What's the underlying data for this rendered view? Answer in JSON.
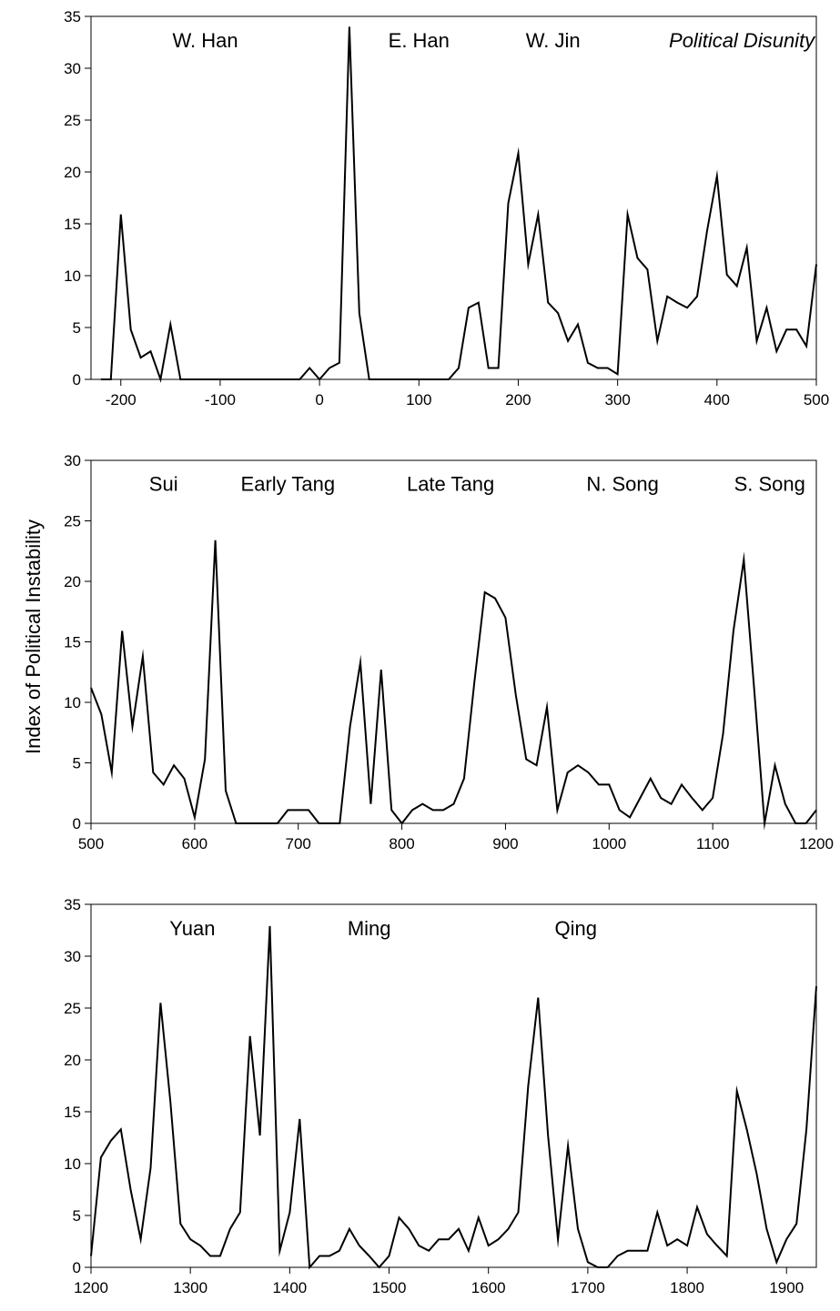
{
  "ylabel": "Index of Political Instability",
  "chart_data": [
    {
      "type": "line",
      "title": "",
      "xlabel": "",
      "ylabel": "Index of Political Instability",
      "xlim": [
        -230,
        500
      ],
      "ylim": [
        0,
        35
      ],
      "xticks": [
        -200,
        -100,
        0,
        100,
        200,
        300,
        400,
        500
      ],
      "xtick_labels": [
        "-200",
        "-100",
        "0",
        "100",
        "200",
        "300",
        "400",
        "500"
      ],
      "yticks": [
        0,
        5,
        10,
        15,
        20,
        25,
        30,
        35
      ],
      "ytick_labels": [
        "0",
        "5",
        "10",
        "15",
        "20",
        "25",
        "30",
        "35"
      ],
      "grid": false,
      "annotations": [
        {
          "text": "W. Han",
          "x": -115,
          "y": 32,
          "italic": false
        },
        {
          "text": "E. Han",
          "x": 100,
          "y": 32,
          "italic": false
        },
        {
          "text": "W. Jin",
          "x": 235,
          "y": 32,
          "italic": false
        },
        {
          "text": "Political Disunity",
          "x": 425,
          "y": 32,
          "italic": true
        }
      ],
      "x": [
        -220,
        -210,
        -200,
        -190,
        -180,
        -170,
        -160,
        -150,
        -140,
        -130,
        -120,
        -110,
        -100,
        -90,
        -80,
        -70,
        -60,
        -50,
        -40,
        -30,
        -20,
        -10,
        0,
        10,
        20,
        30,
        40,
        50,
        60,
        70,
        80,
        90,
        100,
        110,
        120,
        130,
        140,
        150,
        160,
        170,
        180,
        190,
        200,
        210,
        220,
        230,
        240,
        250,
        260,
        270,
        280,
        290,
        300,
        310,
        320,
        330,
        340,
        350,
        360,
        370,
        380,
        390,
        400,
        410,
        420,
        430,
        440,
        450,
        460,
        470,
        480,
        490,
        500
      ],
      "values": [
        0,
        0,
        15.9,
        4.8,
        2.1,
        2.7,
        0,
        5.3,
        0,
        0,
        0,
        0,
        0,
        0,
        0,
        0,
        0,
        0,
        0,
        0,
        0,
        1.1,
        0,
        1.1,
        1.6,
        34.0,
        6.4,
        0,
        0,
        0,
        0,
        0,
        0,
        0,
        0,
        0,
        1.1,
        6.9,
        7.4,
        1.1,
        1.1,
        17.0,
        21.8,
        11.1,
        15.9,
        7.4,
        6.4,
        3.7,
        5.3,
        1.6,
        1.1,
        1.1,
        0.5,
        15.9,
        11.7,
        10.6,
        3.7,
        8.0,
        7.4,
        6.9,
        8.0,
        14.3,
        19.6,
        10.1,
        9.0,
        12.7,
        3.7,
        6.9,
        2.7,
        4.8,
        4.8,
        3.2,
        11.1
      ]
    },
    {
      "type": "line",
      "title": "",
      "xlabel": "",
      "ylabel": "Index of Political Instability",
      "xlim": [
        500,
        1200
      ],
      "ylim": [
        0,
        30
      ],
      "xticks": [
        500,
        600,
        700,
        800,
        900,
        1000,
        1100,
        1200
      ],
      "xtick_labels": [
        "500",
        "600",
        "700",
        "800",
        "900",
        "1000",
        "1100",
        "1200"
      ],
      "yticks": [
        0,
        5,
        10,
        15,
        20,
        25,
        30
      ],
      "ytick_labels": [
        "0",
        "5",
        "10",
        "15",
        "20",
        "25",
        "30"
      ],
      "grid": false,
      "annotations": [
        {
          "text": "Sui",
          "x": 570,
          "y": 27.5,
          "italic": false
        },
        {
          "text": "Early Tang",
          "x": 690,
          "y": 27.5,
          "italic": false
        },
        {
          "text": "Late Tang",
          "x": 847,
          "y": 27.5,
          "italic": false
        },
        {
          "text": "N. Song",
          "x": 1013,
          "y": 27.5,
          "italic": false
        },
        {
          "text": "S. Song",
          "x": 1155,
          "y": 27.5,
          "italic": false
        }
      ],
      "x": [
        500,
        510,
        520,
        530,
        540,
        550,
        560,
        570,
        580,
        590,
        600,
        610,
        620,
        630,
        640,
        650,
        660,
        670,
        680,
        690,
        700,
        710,
        720,
        730,
        740,
        750,
        760,
        770,
        780,
        790,
        800,
        810,
        820,
        830,
        840,
        850,
        860,
        870,
        880,
        890,
        900,
        910,
        920,
        930,
        940,
        950,
        960,
        970,
        980,
        990,
        1000,
        1010,
        1020,
        1030,
        1040,
        1050,
        1060,
        1070,
        1080,
        1090,
        1100,
        1110,
        1120,
        1130,
        1140,
        1150,
        1160,
        1170,
        1180,
        1190,
        1200
      ],
      "values": [
        11.2,
        9.0,
        4.2,
        15.9,
        8.0,
        13.8,
        4.2,
        3.2,
        4.8,
        3.7,
        0.5,
        5.3,
        23.4,
        2.7,
        0,
        0,
        0,
        0,
        0,
        1.1,
        1.1,
        1.1,
        0,
        0,
        0,
        8.0,
        13.3,
        1.6,
        12.7,
        1.1,
        0,
        1.1,
        1.6,
        1.1,
        1.1,
        1.6,
        3.7,
        11.7,
        19.1,
        18.6,
        17.0,
        10.6,
        5.3,
        4.8,
        9.6,
        1.1,
        4.2,
        4.8,
        4.2,
        3.2,
        3.2,
        1.1,
        0.5,
        2.1,
        3.7,
        2.1,
        1.6,
        3.2,
        2.1,
        1.1,
        2.1,
        7.4,
        15.9,
        21.8,
        11.1,
        0,
        4.8,
        1.6,
        0,
        0,
        1.1
      ]
    },
    {
      "type": "line",
      "title": "",
      "xlabel": "",
      "ylabel": "Index of Political Instability",
      "xlim": [
        1200,
        1930
      ],
      "ylim": [
        0,
        35
      ],
      "xticks": [
        1200,
        1300,
        1400,
        1500,
        1600,
        1700,
        1800,
        1900
      ],
      "xtick_labels": [
        "1200",
        "1300",
        "1400",
        "1500",
        "1600",
        "1700",
        "1800",
        "1900"
      ],
      "yticks": [
        0,
        5,
        10,
        15,
        20,
        25,
        30,
        35
      ],
      "ytick_labels": [
        "0",
        "5",
        "10",
        "15",
        "20",
        "25",
        "30",
        "35"
      ],
      "grid": false,
      "annotations": [
        {
          "text": "Yuan",
          "x": 1302,
          "y": 32,
          "italic": false
        },
        {
          "text": "Ming",
          "x": 1480,
          "y": 32,
          "italic": false
        },
        {
          "text": "Qing",
          "x": 1688,
          "y": 32,
          "italic": false
        }
      ],
      "x": [
        1200,
        1210,
        1220,
        1230,
        1240,
        1250,
        1260,
        1270,
        1280,
        1290,
        1300,
        1310,
        1320,
        1330,
        1340,
        1350,
        1360,
        1370,
        1380,
        1390,
        1400,
        1410,
        1420,
        1430,
        1440,
        1450,
        1460,
        1470,
        1480,
        1490,
        1500,
        1510,
        1520,
        1530,
        1540,
        1550,
        1560,
        1570,
        1580,
        1590,
        1600,
        1610,
        1620,
        1630,
        1640,
        1650,
        1660,
        1670,
        1680,
        1690,
        1700,
        1710,
        1720,
        1730,
        1740,
        1750,
        1760,
        1770,
        1780,
        1790,
        1800,
        1810,
        1820,
        1830,
        1840,
        1850,
        1860,
        1870,
        1880,
        1890,
        1900,
        1910,
        1920,
        1930
      ],
      "values": [
        1.1,
        10.6,
        12.2,
        13.3,
        7.4,
        2.7,
        9.6,
        25.5,
        15.9,
        4.2,
        2.7,
        2.1,
        1.1,
        1.1,
        3.7,
        5.3,
        22.3,
        12.7,
        32.9,
        1.6,
        5.3,
        14.3,
        0,
        1.1,
        1.1,
        1.6,
        3.7,
        2.1,
        1.1,
        0,
        1.1,
        4.8,
        3.7,
        2.1,
        1.6,
        2.7,
        2.7,
        3.7,
        1.6,
        4.8,
        2.1,
        2.7,
        3.7,
        5.3,
        17.5,
        26.0,
        12.7,
        2.7,
        11.7,
        3.7,
        0.5,
        0,
        0,
        1.1,
        1.6,
        1.6,
        1.6,
        5.3,
        2.1,
        2.7,
        2.1,
        5.8,
        3.2,
        2.1,
        1.1,
        17.0,
        13.3,
        9.0,
        3.7,
        0.5,
        2.7,
        4.2,
        13.3,
        27.1
      ]
    }
  ]
}
